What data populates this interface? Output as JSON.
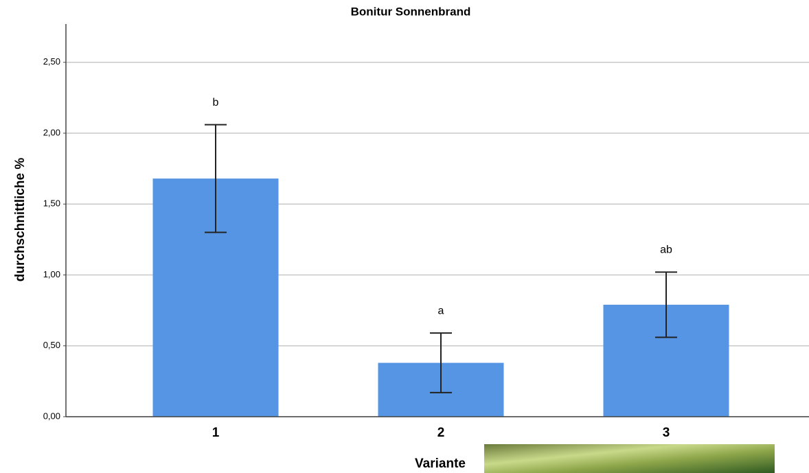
{
  "chart_data": {
    "type": "bar",
    "title": "Bonitur Sonnenbrand",
    "x_label": "Variante",
    "y_label": "durchschnittliche %",
    "categories": [
      "1",
      "2",
      "3"
    ],
    "values": [
      1.68,
      0.38,
      0.79
    ],
    "errors": [
      0.38,
      0.21,
      0.23
    ],
    "annotations": [
      "b",
      "a",
      "ab"
    ],
    "color": "#5595e3",
    "ylim": [
      0,
      2.77
    ],
    "yticks": [
      {
        "value": 0,
        "label": "0,00"
      },
      {
        "value": 0.5,
        "label": "0,50"
      },
      {
        "value": 1,
        "label": "1,00"
      },
      {
        "value": 1.5,
        "label": "1,50"
      },
      {
        "value": 2,
        "label": "2,00"
      },
      {
        "value": 2.5,
        "label": "2,50"
      }
    ],
    "grid": true
  }
}
